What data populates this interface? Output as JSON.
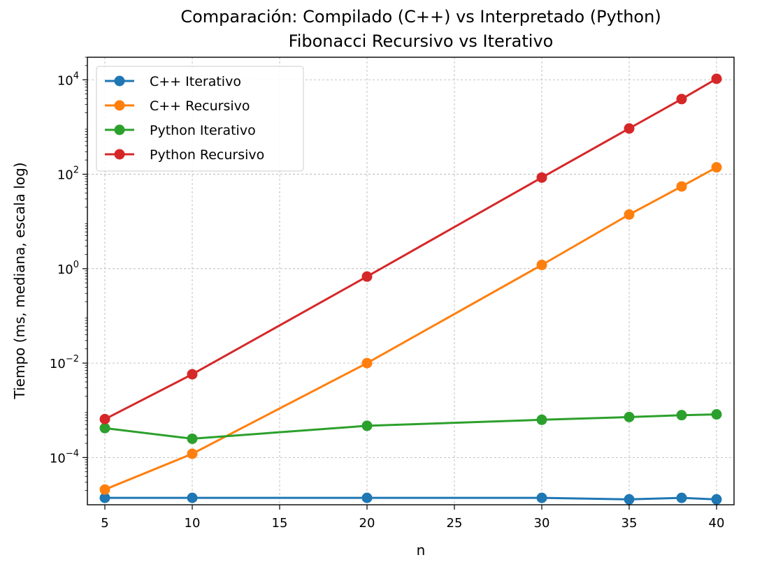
{
  "chart_data": {
    "type": "line",
    "title": "Comparación: Compilado (C++) vs Interpretado (Python)",
    "subtitle": "Fibonacci Recursivo vs Iterativo",
    "xlabel": "n",
    "ylabel": "Tiempo (ms, mediana, escala log)",
    "yscale": "log",
    "xlim": [
      4,
      41
    ],
    "ylim": [
      1e-05,
      30000
    ],
    "grid": true,
    "legend_position": "upper-left",
    "x": [
      5,
      10,
      20,
      30,
      35,
      38,
      40
    ],
    "x_ticks": [
      5,
      10,
      15,
      20,
      25,
      30,
      35,
      40
    ],
    "y_ticks": [
      {
        "value": 0.0001,
        "base": "10",
        "exp": "−4"
      },
      {
        "value": 0.01,
        "base": "10",
        "exp": "−2"
      },
      {
        "value": 1,
        "base": "10",
        "exp": "0"
      },
      {
        "value": 100,
        "base": "10",
        "exp": "2"
      },
      {
        "value": 10000,
        "base": "10",
        "exp": "4"
      }
    ],
    "series": [
      {
        "name": "C++ Iterativo",
        "color": "#1f77b4",
        "values": [
          1.4e-05,
          1.4e-05,
          1.4e-05,
          1.4e-05,
          1.3e-05,
          1.4e-05,
          1.3e-05
        ]
      },
      {
        "name": "C++ Recursivo",
        "color": "#ff7f0e",
        "values": [
          2.1e-05,
          0.00012,
          0.01,
          1.2,
          14,
          55,
          140
        ]
      },
      {
        "name": "Python Iterativo",
        "color": "#2ca02c",
        "values": [
          0.00042,
          0.00025,
          0.00047,
          0.00063,
          0.00072,
          0.00079,
          0.00082
        ]
      },
      {
        "name": "Python Recursivo",
        "color": "#d62728",
        "values": [
          0.00065,
          0.0058,
          0.68,
          85,
          930,
          3900,
          10500
        ]
      }
    ]
  }
}
